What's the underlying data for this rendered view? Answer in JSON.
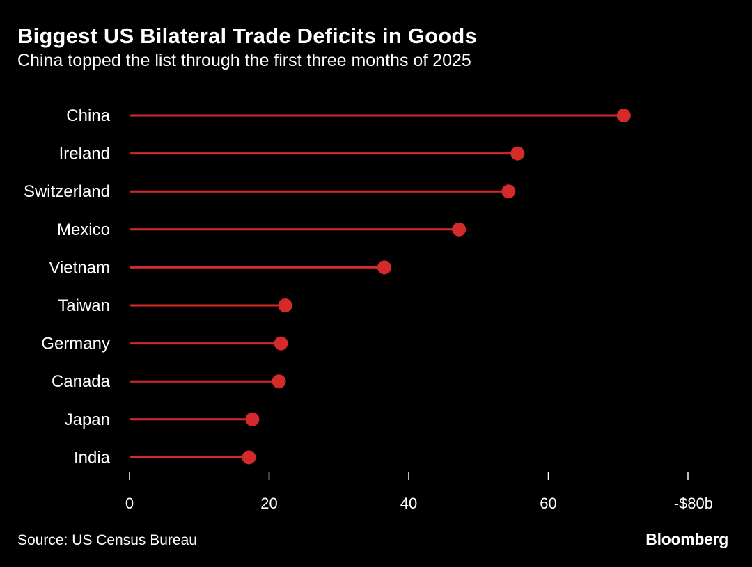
{
  "title": "Biggest US Bilateral Trade Deficits in Goods",
  "subtitle": "China topped the list through the first three months of 2025",
  "source": "Source: US Census Bureau",
  "brand": "Bloomberg",
  "colors": {
    "marker": "#d42a2a",
    "background": "#000000",
    "text": "#ffffff"
  },
  "chart_data": {
    "type": "lollipop",
    "categories": [
      "China",
      "Ireland",
      "Switzerland",
      "Mexico",
      "Vietnam",
      "Taiwan",
      "Germany",
      "Canada",
      "Japan",
      "India"
    ],
    "values": [
      70.8,
      55.6,
      54.3,
      47.2,
      36.5,
      22.3,
      21.7,
      21.4,
      17.6,
      17.1
    ],
    "xlim": [
      0,
      80
    ],
    "xticks": [
      0,
      20,
      40,
      60,
      80
    ],
    "xtick_labels": [
      "0",
      "20",
      "40",
      "60",
      "-$80b"
    ],
    "grid": false
  }
}
